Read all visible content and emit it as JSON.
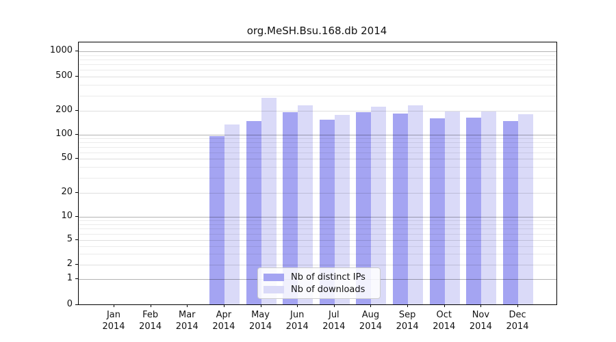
{
  "figure": {
    "title": "org.MeSH.Bsu.168.db 2014"
  },
  "colors": {
    "ips": "#a4a4f2",
    "downloads": "#dadaf8",
    "grid_power10": "rgba(0,0,0,0.30)",
    "grid_major": "rgba(0,0,0,0.13)",
    "grid_minor": "rgba(0,0,0,0.08)",
    "spine": "#000000",
    "text": "#111111"
  },
  "legend": {
    "items": [
      {
        "label": "Nb of distinct IPs",
        "color_key": "ips"
      },
      {
        "label": "Nb of downloads",
        "color_key": "downloads"
      }
    ]
  },
  "chart_data": {
    "type": "bar",
    "title": "org.MeSH.Bsu.168.db 2014",
    "categories": [
      "Jan 2014",
      "Feb 2014",
      "Mar 2014",
      "Apr 2014",
      "May 2014",
      "Jun 2014",
      "Jul 2014",
      "Aug 2014",
      "Sep 2014",
      "Oct 2014",
      "Nov 2014",
      "Dec 2014"
    ],
    "x_axis": {
      "tick_months": [
        "Jan",
        "Feb",
        "Mar",
        "Apr",
        "May",
        "Jun",
        "Jul",
        "Aug",
        "Sep",
        "Oct",
        "Nov",
        "Dec"
      ],
      "tick_year": "2014"
    },
    "series": [
      {
        "name": "Nb of distinct IPs",
        "values": [
          null,
          null,
          null,
          97,
          148,
          192,
          155,
          192,
          186,
          160,
          165,
          148
        ]
      },
      {
        "name": "Nb of downloads",
        "values": [
          null,
          null,
          null,
          135,
          285,
          230,
          178,
          222,
          231,
          198,
          195,
          180
        ]
      }
    ],
    "y_axis": {
      "scale": "symlog",
      "range": [
        0,
        1000
      ],
      "ticks": [
        0,
        1,
        2,
        5,
        10,
        20,
        50,
        100,
        200,
        500,
        1000
      ],
      "tick_labels": [
        "0",
        "1",
        "2",
        "5",
        "10",
        "20",
        "50",
        "100",
        "200",
        "500",
        "1000"
      ],
      "minor_ticks": [
        3,
        4,
        6,
        7,
        8,
        9,
        30,
        40,
        60,
        70,
        80,
        90,
        300,
        400,
        600,
        700,
        800,
        900
      ]
    },
    "grid": true,
    "legend_position": "lower center"
  }
}
